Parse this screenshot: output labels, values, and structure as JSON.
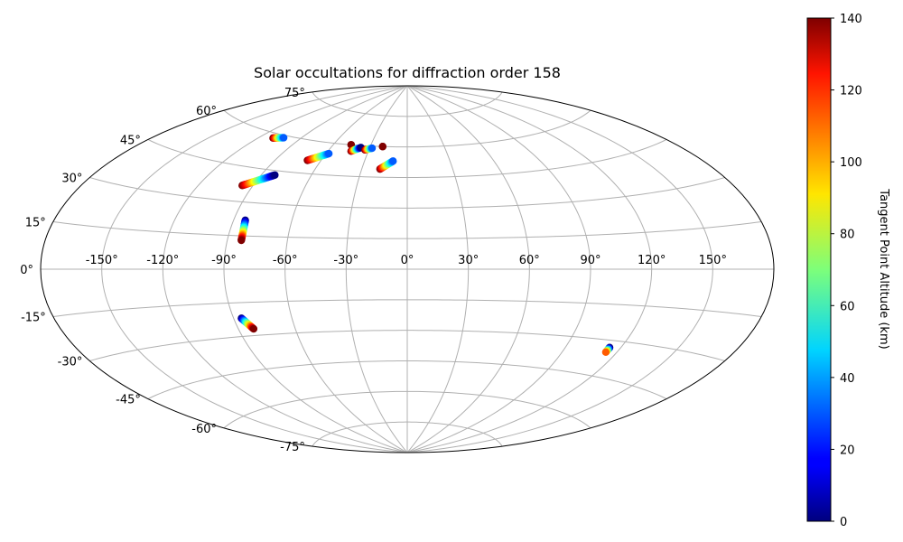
{
  "chart_data": {
    "type": "scatter",
    "projection": "aitoff",
    "title": "Solar occultations for diffraction order 158",
    "grid": true,
    "lon_ticks": [
      "-150°",
      "-120°",
      "-90°",
      "-60°",
      "-30°",
      "0°",
      "30°",
      "60°",
      "90°",
      "120°",
      "150°"
    ],
    "lon_tick_values": [
      -150,
      -120,
      -90,
      -60,
      -30,
      0,
      30,
      60,
      90,
      120,
      150
    ],
    "lat_ticks": [
      "-75°",
      "-60°",
      "-45°",
      "-30°",
      "-15°",
      "0°",
      "15°",
      "30°",
      "45°",
      "60°",
      "75°"
    ],
    "lat_tick_values": [
      -75,
      -60,
      -45,
      -30,
      -15,
      0,
      15,
      30,
      45,
      60,
      75
    ],
    "colorbar": {
      "label": "Tangent Point Altitude (km)",
      "colormap": "jet",
      "range": [
        0,
        140
      ],
      "ticks": [
        "0",
        "20",
        "40",
        "60",
        "80",
        "100",
        "120",
        "140"
      ],
      "tick_values": [
        0,
        20,
        40,
        60,
        80,
        100,
        120,
        140
      ]
    },
    "occultations": [
      {
        "from": {
          "lon": -110,
          "lat": 58
        },
        "to": {
          "lon": -103,
          "lat": 59
        },
        "alt_from": 140,
        "alt_to": 30
      },
      {
        "from": {
          "lon": -96,
          "lat": 37
        },
        "to": {
          "lon": -82,
          "lat": 43
        },
        "alt_from": 140,
        "alt_to": 0
      },
      {
        "from": {
          "lon": -69,
          "lat": 51
        },
        "to": {
          "lon": -58,
          "lat": 55
        },
        "alt_from": 140,
        "alt_to": 30
      },
      {
        "from": {
          "lon": -46,
          "lat": 60
        },
        "to": {
          "lon": -46,
          "lat": 60
        },
        "alt_from": 140,
        "alt_to": 140
      },
      {
        "from": {
          "lon": -43,
          "lat": 57
        },
        "to": {
          "lon": -37,
          "lat": 59
        },
        "alt_from": 140,
        "alt_to": 0
      },
      {
        "from": {
          "lon": -33,
          "lat": 58
        },
        "to": {
          "lon": -28,
          "lat": 59
        },
        "alt_from": 140,
        "alt_to": 30
      },
      {
        "from": {
          "lon": -20,
          "lat": 60
        },
        "to": {
          "lon": -20,
          "lat": 60
        },
        "alt_from": 140,
        "alt_to": 140
      },
      {
        "from": {
          "lon": -18,
          "lat": 49
        },
        "to": {
          "lon": -10,
          "lat": 53
        },
        "alt_from": 140,
        "alt_to": 30
      },
      {
        "from": {
          "lon": -84,
          "lat": 22
        },
        "to": {
          "lon": -83,
          "lat": 13
        },
        "alt_from": 0,
        "alt_to": 140
      },
      {
        "from": {
          "lon": -86,
          "lat": -22
        },
        "to": {
          "lon": -82,
          "lat": -27
        },
        "alt_from": 0,
        "alt_to": 140
      },
      {
        "from": {
          "lon": 114,
          "lat": -33
        },
        "to": {
          "lon": 114,
          "lat": -35
        },
        "alt_from": 0,
        "alt_to": 110
      }
    ]
  }
}
